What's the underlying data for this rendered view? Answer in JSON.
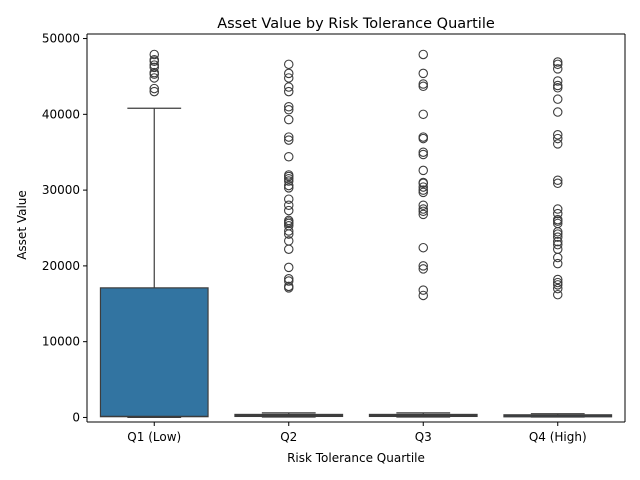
{
  "chart_data": {
    "type": "box",
    "title": "Asset Value by Risk Tolerance Quartile",
    "xlabel": "Risk Tolerance Quartile",
    "ylabel": "Asset Value",
    "categories": [
      "Q1 (Low)",
      "Q2",
      "Q3",
      "Q4 (High)"
    ],
    "ylim": [
      -600,
      50600
    ],
    "yticks": [
      0,
      10000,
      20000,
      30000,
      40000,
      50000
    ],
    "ytick_labels": [
      "0",
      "10000",
      "20000",
      "30000",
      "40000",
      "50000"
    ],
    "grid": false,
    "box_color": "#3274a1",
    "edge_color": "#3d3d3d",
    "boxes": [
      {
        "category": "Q1 (Low)",
        "whisker_low": 0,
        "q1": 100,
        "median": 150,
        "q3": 17100,
        "whisker_high": 40800,
        "outliers": [
          43000,
          43400,
          44800,
          45300,
          45500,
          46200,
          46500,
          47000,
          47200,
          47900
        ]
      },
      {
        "category": "Q2",
        "whisker_low": 50,
        "q1": 150,
        "median": 250,
        "q3": 400,
        "whisker_high": 600,
        "outliers": [
          17100,
          17300,
          18000,
          18300,
          19800,
          22200,
          23300,
          24200,
          24600,
          25300,
          25600,
          25800,
          26000,
          27300,
          28000,
          28800,
          30300,
          30600,
          31200,
          31500,
          31800,
          32000,
          34400,
          36600,
          37000,
          39300,
          40600,
          41000,
          43000,
          43600,
          44800,
          45400,
          46600
        ]
      },
      {
        "category": "Q3",
        "whisker_low": 50,
        "q1": 150,
        "median": 250,
        "q3": 400,
        "whisker_high": 600,
        "outliers": [
          16100,
          16800,
          19600,
          20000,
          22400,
          26800,
          27200,
          27500,
          28000,
          29700,
          30000,
          30400,
          30900,
          31000,
          32600,
          34700,
          35000,
          36800,
          37000,
          40000,
          43700,
          44000,
          45400,
          47900
        ]
      },
      {
        "category": "Q4 (High)",
        "whisker_low": 50,
        "q1": 150,
        "median": 220,
        "q3": 350,
        "whisker_high": 500,
        "outliers": [
          16200,
          17000,
          17500,
          17800,
          18200,
          20300,
          21100,
          22200,
          22800,
          23200,
          23800,
          24200,
          24500,
          25600,
          25900,
          26100,
          26900,
          27500,
          30900,
          31300,
          36100,
          36800,
          37300,
          40300,
          42000,
          43500,
          43800,
          44400,
          46000,
          46600,
          46900
        ]
      }
    ]
  }
}
